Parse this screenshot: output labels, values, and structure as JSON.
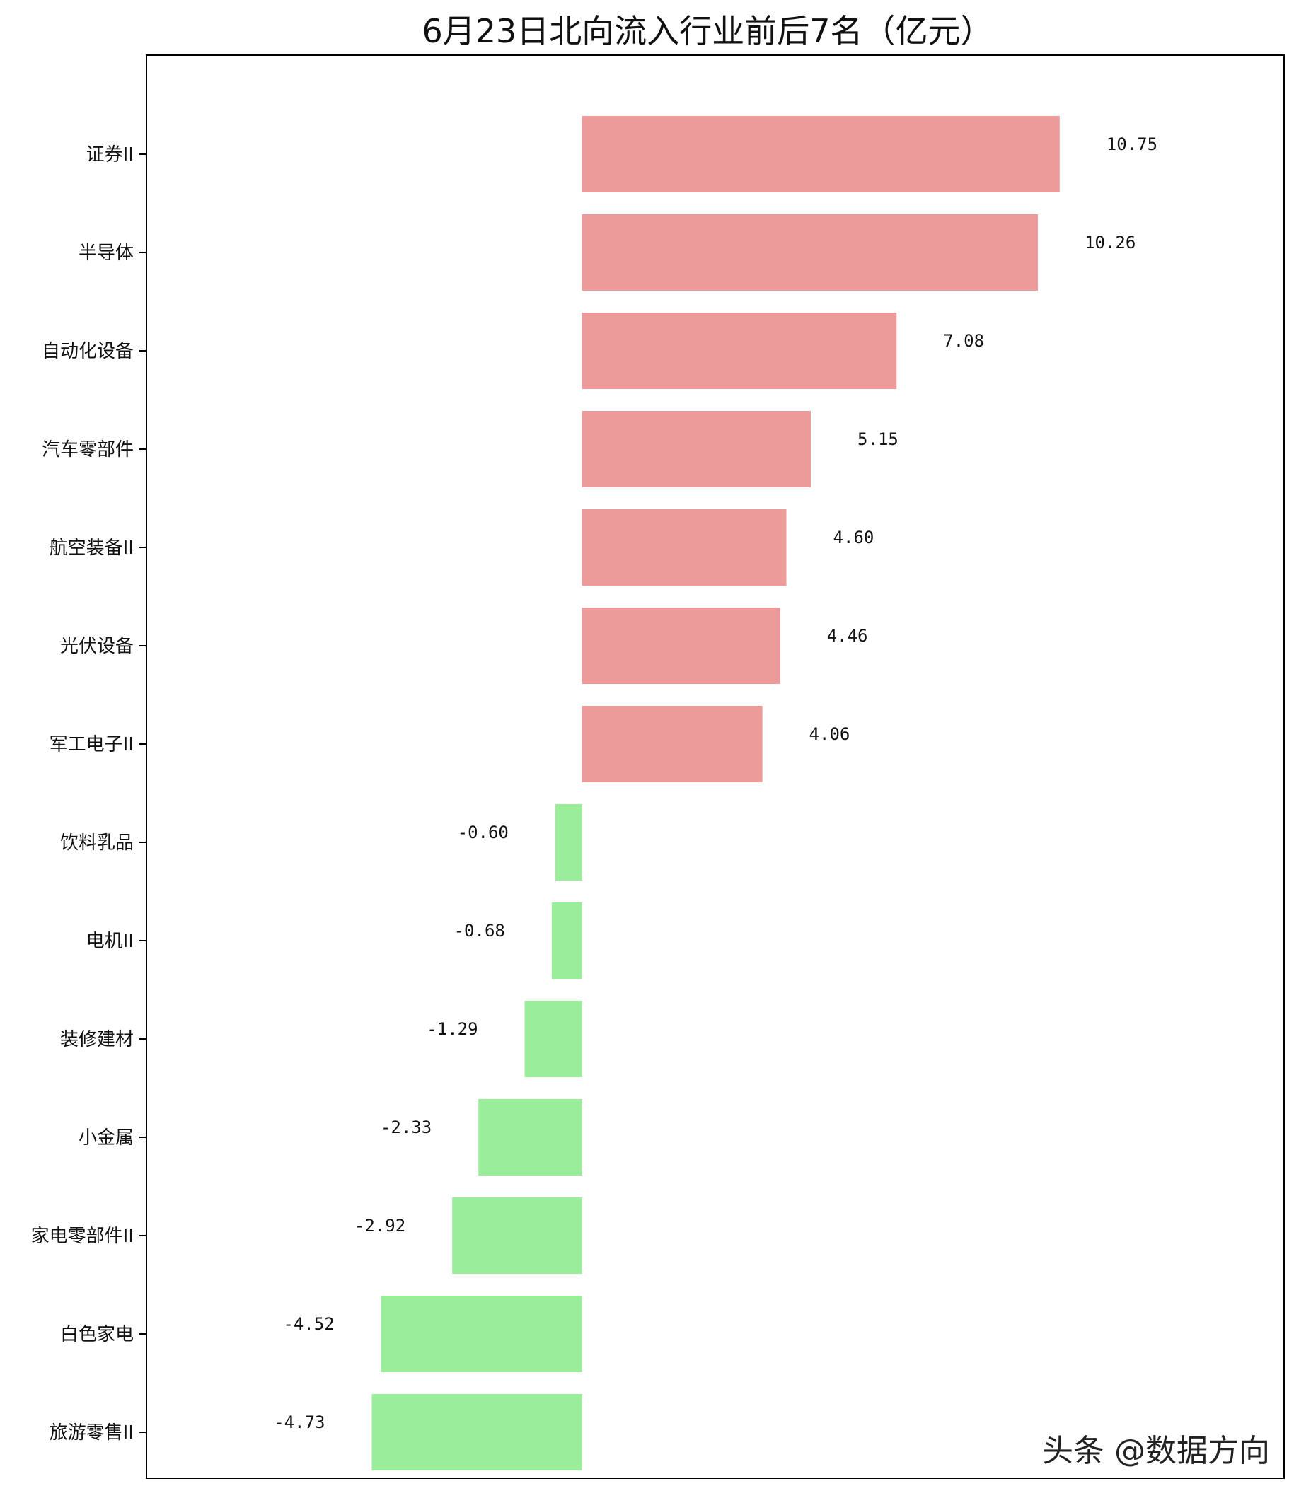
{
  "chart_data": {
    "type": "bar",
    "orientation": "horizontal",
    "title": "6月23日北向流入行业前后7名（亿元）",
    "xlabel": "",
    "ylabel": "",
    "categories": [
      "证券II",
      "半导体",
      "自动化设备",
      "汽车零部件",
      "航空装备II",
      "光伏设备",
      "军工电子II",
      "饮料乳品",
      "电机II",
      "装修建材",
      "小金属",
      "家电零部件II",
      "白色家电",
      "旅游零售II"
    ],
    "values": [
      10.75,
      10.26,
      7.08,
      5.15,
      4.6,
      4.46,
      4.06,
      -0.6,
      -0.68,
      -1.29,
      -2.33,
      -2.92,
      -4.52,
      -4.73
    ],
    "data_labels": [
      "10.75",
      "10.26",
      "7.08",
      "5.15",
      "4.60",
      "4.46",
      "4.06",
      "-0.60",
      "-0.68",
      "-1.29",
      "-2.33",
      "-2.92",
      "-4.52",
      "-4.73"
    ],
    "xlim": [
      -9.8,
      15.8
    ],
    "grid": false,
    "xticks_visible": false,
    "colors": {
      "positive": "#ec9a9a",
      "negative": "#9aee9a"
    }
  },
  "watermark": "头条 @数据方向"
}
